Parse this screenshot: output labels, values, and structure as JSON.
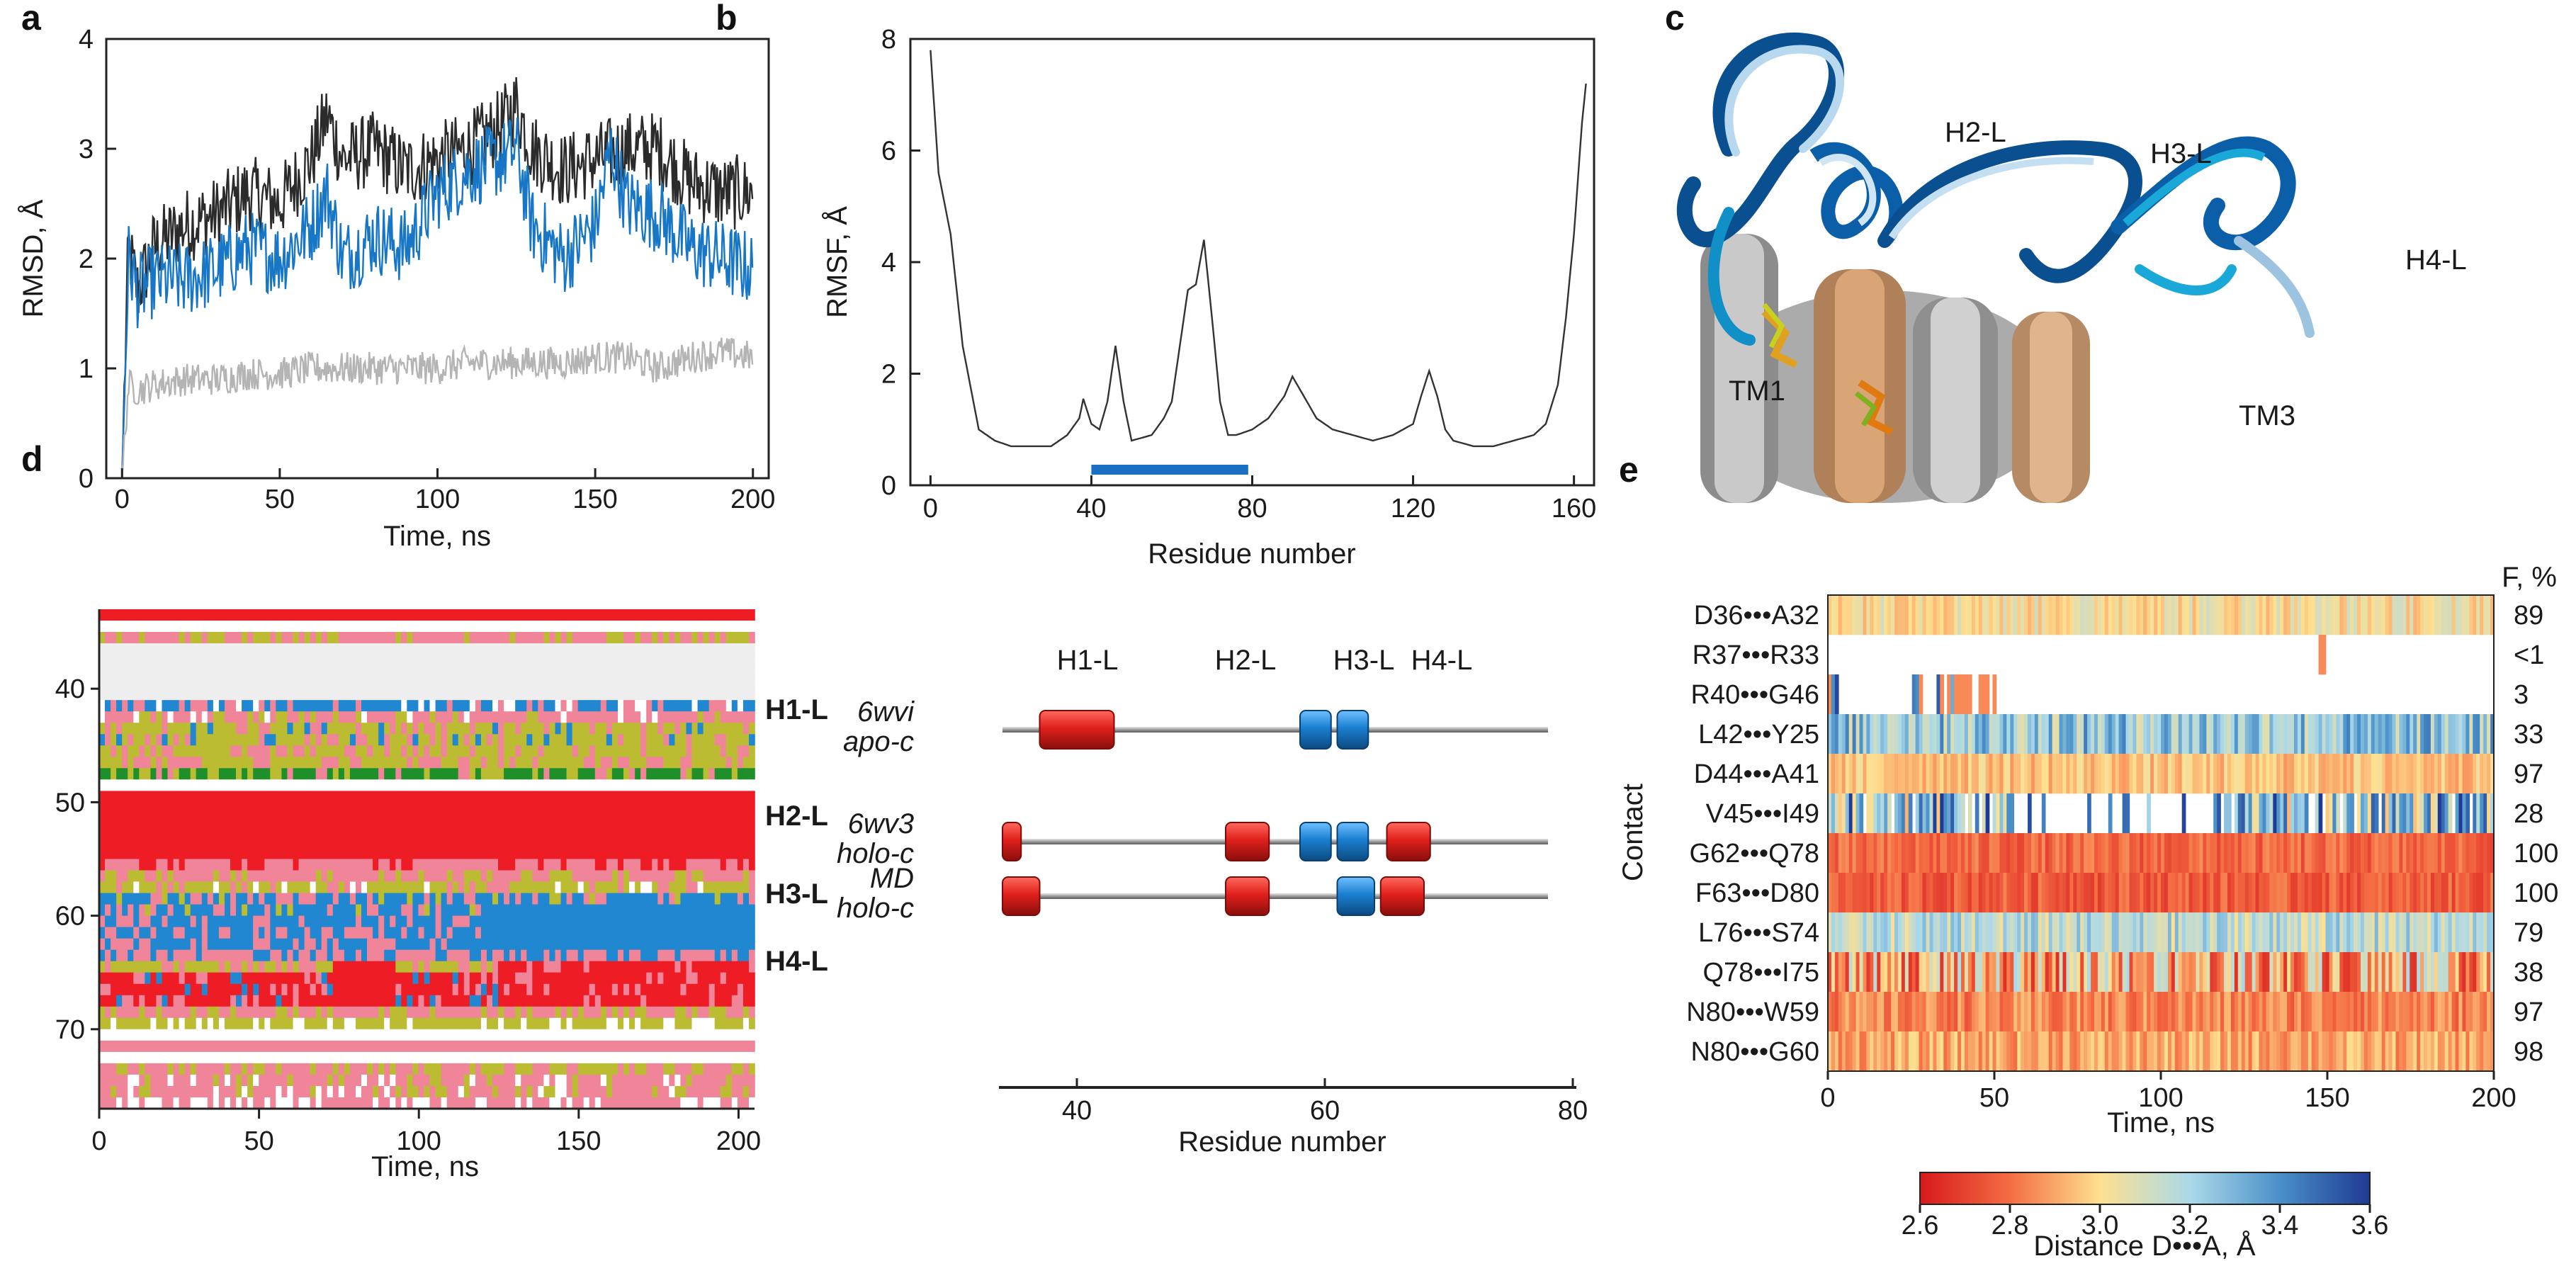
{
  "panel_labels": [
    "a",
    "b",
    "c",
    "d",
    "e"
  ],
  "chart_data": [
    {
      "id": "a",
      "type": "line",
      "xlabel": "Time, ns",
      "ylabel": "RMSD, Å",
      "xlim": [
        -5,
        205
      ],
      "ylim": [
        0,
        4
      ],
      "xticks": [
        0,
        50,
        100,
        150,
        200
      ],
      "yticks": [
        0,
        1,
        2,
        3,
        4
      ],
      "series": [
        {
          "name": "dark",
          "color": "#2b2b2b",
          "x": [
            0,
            2,
            5,
            10,
            20,
            30,
            40,
            50,
            60,
            65,
            70,
            80,
            90,
            100,
            110,
            120,
            125,
            130,
            140,
            150,
            160,
            170,
            180,
            190,
            200
          ],
          "y": [
            0,
            2.1,
            1.7,
            2.1,
            2.3,
            2.4,
            2.6,
            2.5,
            2.9,
            3.3,
            2.9,
            3.0,
            2.8,
            2.9,
            3.0,
            3.2,
            3.4,
            3.0,
            2.8,
            2.9,
            3.0,
            3.0,
            2.7,
            2.6,
            2.6
          ]
        },
        {
          "name": "blue",
          "color": "#1776c6",
          "x": [
            0,
            2,
            5,
            10,
            20,
            30,
            40,
            50,
            60,
            65,
            70,
            80,
            90,
            100,
            105,
            110,
            120,
            125,
            130,
            140,
            150,
            155,
            160,
            170,
            180,
            190,
            200
          ],
          "y": [
            0,
            2.0,
            1.7,
            1.8,
            1.8,
            1.9,
            2.1,
            2.0,
            2.3,
            2.6,
            2.0,
            2.2,
            2.1,
            2.6,
            2.7,
            2.8,
            2.9,
            3.0,
            2.3,
            2.0,
            2.3,
            3.0,
            2.5,
            2.4,
            2.1,
            2.0,
            1.9
          ]
        },
        {
          "name": "gray",
          "color": "#b4b4b4",
          "x": [
            0,
            2,
            5,
            10,
            20,
            30,
            40,
            50,
            60,
            70,
            80,
            90,
            100,
            110,
            120,
            130,
            140,
            150,
            160,
            170,
            180,
            190,
            200
          ],
          "y": [
            0,
            0.85,
            0.8,
            0.85,
            0.9,
            0.9,
            0.95,
            0.95,
            1.0,
            1.0,
            1.0,
            1.0,
            1.0,
            1.05,
            1.05,
            1.05,
            1.05,
            1.1,
            1.1,
            1.0,
            1.1,
            1.15,
            1.1
          ]
        }
      ]
    },
    {
      "id": "b",
      "type": "line",
      "xlabel": "Residue number",
      "ylabel": "RMSF, Å",
      "xlim": [
        -5,
        165
      ],
      "ylim": [
        0,
        8
      ],
      "xticks": [
        0,
        40,
        80,
        120,
        160
      ],
      "yticks": [
        0,
        2,
        4,
        6,
        8
      ],
      "series": [
        {
          "name": "RMSF",
          "color": "#333333",
          "x": [
            0,
            2,
            5,
            8,
            12,
            16,
            20,
            25,
            30,
            34,
            37,
            38,
            40,
            42,
            44,
            46,
            48,
            50,
            55,
            58,
            60,
            62,
            64,
            66,
            68,
            70,
            72,
            74,
            76,
            80,
            84,
            88,
            90,
            92,
            96,
            100,
            105,
            110,
            115,
            120,
            122,
            124,
            126,
            128,
            130,
            135,
            140,
            145,
            150,
            153,
            156,
            158,
            160,
            162,
            163
          ],
          "y": [
            7.8,
            5.6,
            4.5,
            2.5,
            1.0,
            0.8,
            0.7,
            0.7,
            0.7,
            0.9,
            1.2,
            1.55,
            1.1,
            1.0,
            1.5,
            2.5,
            1.5,
            0.8,
            0.9,
            1.2,
            1.5,
            2.5,
            3.5,
            3.6,
            4.4,
            3.0,
            1.5,
            0.9,
            0.9,
            1.0,
            1.2,
            1.6,
            1.95,
            1.7,
            1.2,
            1.0,
            0.9,
            0.8,
            0.9,
            1.1,
            1.6,
            2.05,
            1.6,
            1.0,
            0.8,
            0.7,
            0.7,
            0.8,
            0.9,
            1.1,
            1.8,
            3.0,
            4.5,
            6.5,
            7.2
          ]
        }
      ],
      "highlight_range": [
        40,
        79
      ]
    },
    {
      "id": "d",
      "type": "heatmap",
      "xlabel": "Time, ns",
      "xticks": [
        0,
        50,
        100,
        150,
        200
      ],
      "yticks": [
        40,
        50,
        60,
        70
      ],
      "helix_labels": [
        "H1-L",
        "H2-L",
        "H3-L",
        "H4-L"
      ]
    },
    {
      "id": "d-map",
      "type": "bar",
      "xlabel": "Residue number",
      "xticks": [
        40,
        60,
        80
      ],
      "top_labels": [
        "H1-L",
        "H2-L",
        "H3-L",
        "H4-L"
      ],
      "rows": [
        {
          "lines": [
            "6wvi",
            "apo-c"
          ],
          "segments": [
            {
              "start": 37,
              "end": 43,
              "kind": "red"
            },
            {
              "start": 58,
              "end": 60.5,
              "kind": "blue"
            },
            {
              "start": 61,
              "end": 63.5,
              "kind": "blue"
            }
          ]
        },
        {
          "lines": [
            "6wv3",
            "holo-c"
          ],
          "segments": [
            {
              "start": 34,
              "end": 35.5,
              "kind": "red"
            },
            {
              "start": 52,
              "end": 55.5,
              "kind": "red"
            },
            {
              "start": 58,
              "end": 60.5,
              "kind": "blue"
            },
            {
              "start": 61,
              "end": 63.5,
              "kind": "blue"
            },
            {
              "start": 65,
              "end": 68.5,
              "kind": "red"
            }
          ]
        },
        {
          "lines": [
            "MD",
            "holo-c"
          ],
          "segments": [
            {
              "start": 34,
              "end": 37,
              "kind": "red"
            },
            {
              "start": 52,
              "end": 55.5,
              "kind": "red"
            },
            {
              "start": 61,
              "end": 64,
              "kind": "blue"
            },
            {
              "start": 64.5,
              "end": 68,
              "kind": "red"
            }
          ]
        }
      ],
      "colors": {
        "red": "#e0201c",
        "blue": "#1a7fd0"
      }
    },
    {
      "id": "e",
      "type": "heatmap",
      "xlabel": "Time, ns",
      "ylabel": "Contact",
      "xticks": [
        0,
        50,
        100,
        150,
        200
      ],
      "f_header": "F, %",
      "contacts": [
        "D36•••A32",
        "R37•••R33",
        "R40•••G46",
        "L42•••Y25",
        "D44•••A41",
        "V45•••I49",
        "G62•••Q78",
        "F63•••D80",
        "L76•••S74",
        "Q78•••I75",
        "N80•••W59",
        "N80•••G60"
      ],
      "frequencies": [
        "89",
        "<1",
        "3",
        "33",
        "97",
        "28",
        "100",
        "100",
        "79",
        "38",
        "97",
        "98"
      ],
      "colorbar": {
        "label": "Distance D•••A, Å",
        "ticks": [
          "2.6",
          "2.8",
          "3.0",
          "3.2",
          "3.4",
          "3.6"
        ],
        "range": [
          2.6,
          3.6
        ]
      }
    }
  ],
  "structure": {
    "labels": [
      "H2-L",
      "H3-L",
      "H4-L",
      "TM1",
      "TM3"
    ]
  }
}
